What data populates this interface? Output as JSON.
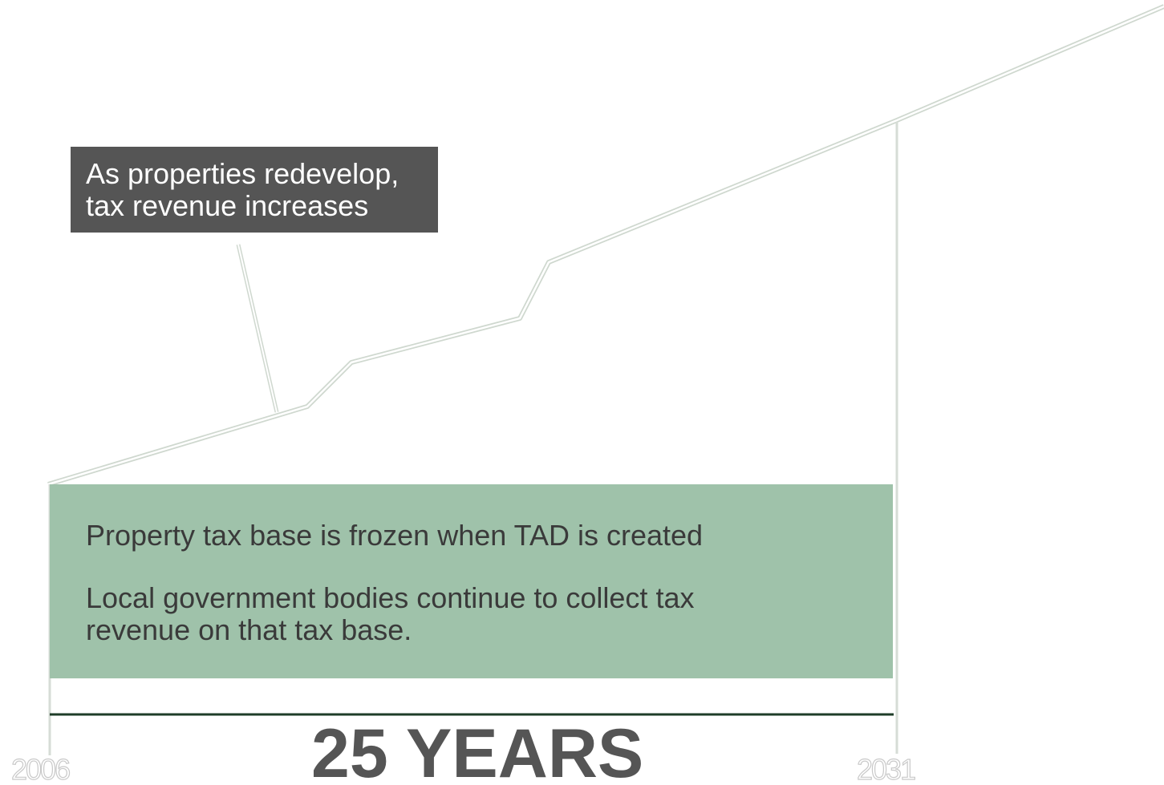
{
  "callout": {
    "line1": "As properties redevelop,",
    "line2": "tax revenue increases"
  },
  "base_box": {
    "text1": "Property tax base is frozen when TAD is created",
    "text2_line1": "Local government bodies continue to collect tax",
    "text2_line2": "revenue on that tax base."
  },
  "timeline": {
    "duration_label": "25 YEARS",
    "start_year": "2006",
    "end_year": "2031"
  },
  "colors": {
    "callout_background": "#555555",
    "base_box_background": "#9fc2aa",
    "revenue_line": "#dfe6df",
    "timeline_rule": "#1e3d28",
    "heading_text": "#555555"
  }
}
